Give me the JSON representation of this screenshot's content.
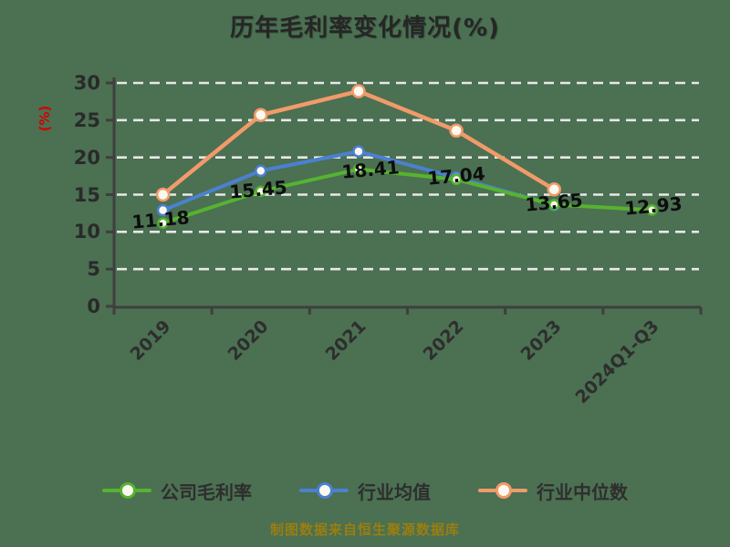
{
  "title": "历年毛利率变化情况(%)",
  "y_axis_title": "(%)",
  "footer_note": "制图数据来自恒生聚源数据库",
  "colors": {
    "background": "#4b7052",
    "grid": "#e8e8e6",
    "axis": "#3f3f3d",
    "title_text": "#262626",
    "y_axis_title_red": "#d40000",
    "footer_text": "#9a7e10",
    "data_label_text": "#0d0d0d",
    "marker_fill": "#fbf9ef",
    "company": "#56b32f",
    "industry_avg": "#4b80d1",
    "industry_median": "#f19a6a"
  },
  "legend": [
    {
      "label": "公司毛利率",
      "color": "#56b32f"
    },
    {
      "label": "行业均值",
      "color": "#4b80d1"
    },
    {
      "label": "行业中位数",
      "color": "#f19a6a"
    }
  ],
  "chart_data": {
    "type": "line",
    "title": "历年毛利率变化情况(%)",
    "xlabel": "",
    "ylabel": "(%)",
    "categories": [
      "2019",
      "2020",
      "2021",
      "2022",
      "2023",
      "2024Q1-Q3"
    ],
    "yticks": [
      0,
      5,
      10,
      15,
      20,
      25,
      30
    ],
    "ylim": [
      0,
      30
    ],
    "grid": "horizontal-dashed-white",
    "legend_position": "bottom",
    "series": [
      {
        "name": "公司毛利率",
        "color": "#56b32f",
        "values": [
          11.18,
          15.45,
          18.41,
          17.04,
          13.65,
          12.93
        ],
        "data_labels": [
          "11.18",
          "15.45",
          "18.41",
          "17.04",
          "13.65",
          "12.93"
        ]
      },
      {
        "name": "行业均值",
        "color": "#4b80d1",
        "values": [
          12.9,
          18.2,
          20.8,
          17.3,
          13.6,
          null
        ]
      },
      {
        "name": "行业中位数",
        "color": "#f19a6a",
        "values": [
          15.0,
          25.7,
          28.9,
          23.6,
          15.7,
          null
        ]
      }
    ]
  }
}
